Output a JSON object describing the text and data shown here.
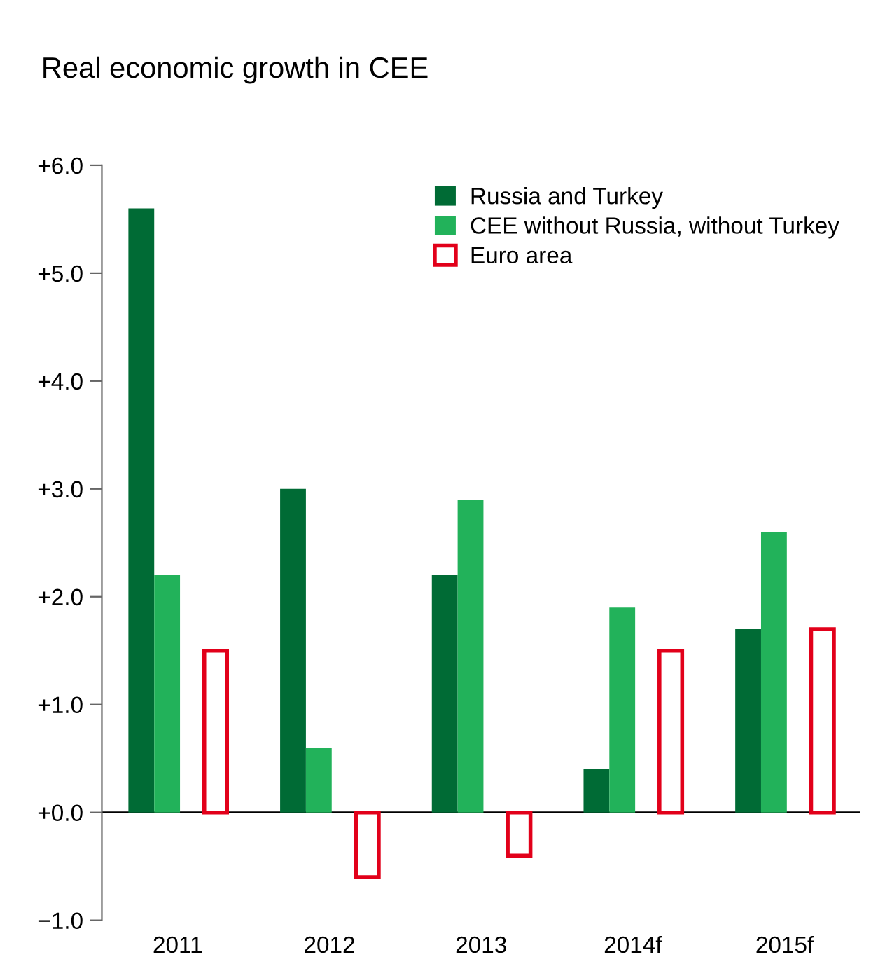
{
  "chart_data": {
    "type": "bar",
    "title": "Real economic growth in CEE",
    "categories": [
      "2011",
      "2012",
      "2013",
      "2014f",
      "2015f"
    ],
    "series": [
      {
        "name": "Russia and Turkey",
        "color": "#006b35",
        "values": [
          5.6,
          3.0,
          2.2,
          0.4,
          1.7
        ]
      },
      {
        "name": "CEE without Russia, without Turkey",
        "color": "#22b25a",
        "values": [
          2.2,
          0.6,
          2.9,
          1.9,
          2.6
        ]
      },
      {
        "name": "Euro area",
        "color": "#e2001a",
        "line_style": "solid",
        "values": [
          1.5,
          -0.6,
          -0.4,
          1.5,
          1.7
        ]
      }
    ],
    "ylim": [
      -1.0,
      6.0
    ],
    "yticks": [
      {
        "value": -1.0,
        "label": "−1.0"
      },
      {
        "value": 0.0,
        "label": "+0.0"
      },
      {
        "value": 1.0,
        "label": "+1.0"
      },
      {
        "value": 2.0,
        "label": "+2.0"
      },
      {
        "value": 3.0,
        "label": "+3.0"
      },
      {
        "value": 4.0,
        "label": "+4.0"
      },
      {
        "value": 5.0,
        "label": "+5.0"
      },
      {
        "value": 6.0,
        "label": "+6.0"
      }
    ],
    "ref_lines": [
      {
        "axis": "y",
        "value": 0.0,
        "color": "#000000"
      }
    ],
    "grid": false,
    "legend": "top right"
  }
}
